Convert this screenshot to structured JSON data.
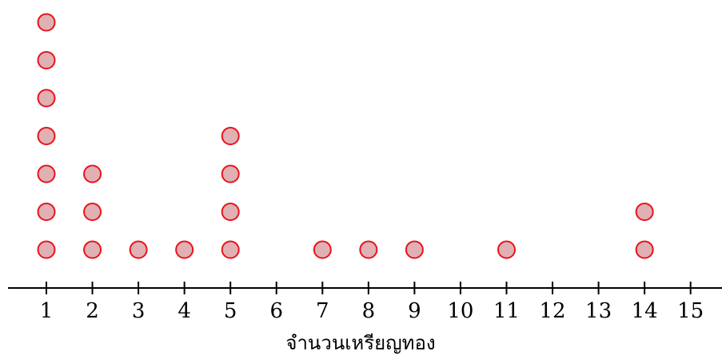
{
  "chart_data": {
    "type": "scatter",
    "subtype": "dot_plot",
    "title": "",
    "xlabel": "จำนวนเหรียญทอง",
    "ylabel": "",
    "x_ticks": [
      1,
      2,
      3,
      4,
      5,
      6,
      7,
      8,
      9,
      10,
      11,
      12,
      13,
      14,
      15
    ],
    "xlim": [
      0.2,
      15.8
    ],
    "values": [
      1,
      2,
      3,
      4,
      5,
      7,
      8,
      9,
      11,
      14
    ],
    "counts": [
      7,
      3,
      1,
      1,
      4,
      1,
      1,
      1,
      1,
      2
    ],
    "grid": false,
    "colors": {
      "dot_fill": "#e0b0b4",
      "dot_stroke": "#e8141c",
      "axis": "#000000"
    }
  }
}
